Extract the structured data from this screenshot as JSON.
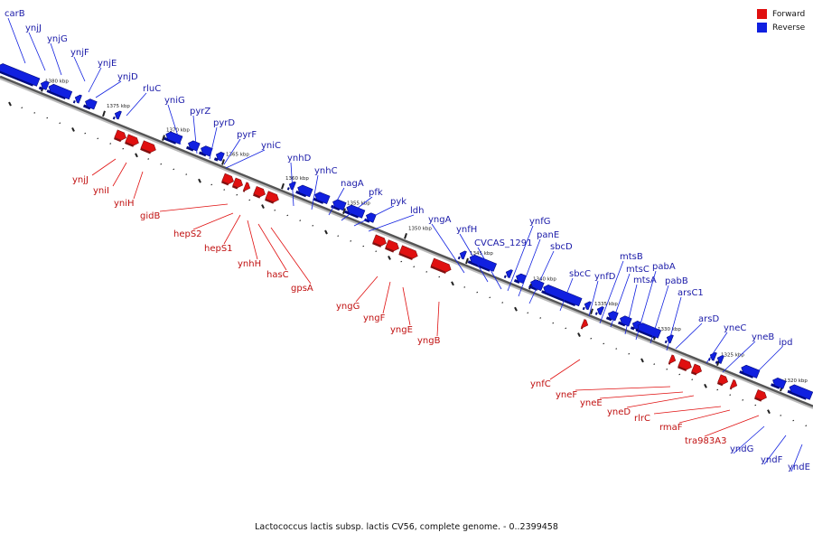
{
  "colors": {
    "forward": "#e01010",
    "reverse": "#1020e0",
    "backbone": "#888888"
  },
  "legend": [
    {
      "label": "Forward",
      "color": "#e01010"
    },
    {
      "label": "Reverse",
      "color": "#1020e0"
    }
  ],
  "caption": "Lactococcus lactis subsp. lactis CV56, complete genome. - 0..2399458",
  "ticks": [
    {
      "label": "1380 kbp"
    },
    {
      "label": "1375 kbp"
    },
    {
      "label": "1370 kbp"
    },
    {
      "label": "1365 kbp"
    },
    {
      "label": "1360 kbp"
    },
    {
      "label": "1355 kbp"
    },
    {
      "label": "1350 kbp"
    },
    {
      "label": "1345 kbp"
    },
    {
      "label": "1340 kbp"
    },
    {
      "label": "1335 kbp"
    },
    {
      "label": "1330 kbp"
    },
    {
      "label": "1325 kbp"
    },
    {
      "label": "1320 kbp"
    }
  ],
  "reverse_genes": [
    "carB",
    "ynjJ",
    "ynjG",
    "ynjF",
    "ynjE",
    "ynjD",
    "rluC",
    "yniG",
    "pyrZ",
    "pyrD",
    "pyrF",
    "yniC",
    "ynhD",
    "ynhC",
    "nagA",
    "pfk",
    "pyk",
    "ldh",
    "yngA",
    "ynfH",
    "CVCAS_1291",
    "ynfG",
    "panE",
    "sbcD",
    "sbcC",
    "ynfD",
    "mtsB",
    "mtsC",
    "mtsA",
    "pabA",
    "pabB",
    "arsC1",
    "arsD",
    "yneC",
    "yneB",
    "ipd",
    "yndG",
    "yndF",
    "yndE"
  ],
  "forward_genes": [
    "ynjJ",
    "yniI",
    "yniH",
    "gidB",
    "hepS2",
    "hepS1",
    "ynhH",
    "hasC",
    "gpsA",
    "yngG",
    "yngF",
    "yngE",
    "yngB",
    "ynfC",
    "yneF",
    "yneE",
    "yneD",
    "rlrC",
    "rmaF",
    "tra983A3"
  ]
}
